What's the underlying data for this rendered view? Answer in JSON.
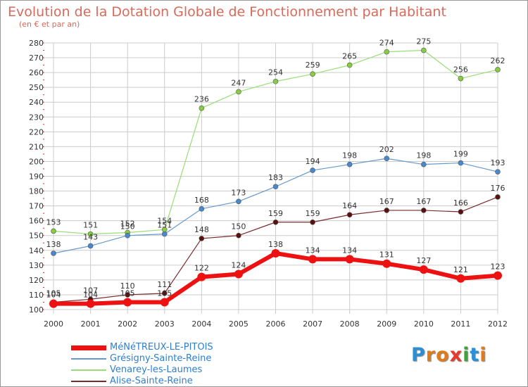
{
  "title": "Evolution de la Dotation Globale de Fonctionnement par Habitant",
  "subtitle": "(en € et par an)",
  "colors": {
    "title": "#d96a5a",
    "grid": "#cccccc",
    "axis_text": "#333333",
    "legend_text": "#2d7fd3",
    "tick_marks": "#cc3333"
  },
  "logo": {
    "text": "Proxiti",
    "letters": [
      {
        "ch": "P",
        "color": "#2b8fd6"
      },
      {
        "ch": "r",
        "color": "#e07b1a"
      },
      {
        "ch": "o",
        "color": "#e07b1a"
      },
      {
        "ch": "x",
        "color": "#e53a2f"
      },
      {
        "ch": "i",
        "color": "#3aa63a"
      },
      {
        "ch": "t",
        "color": "#2b8fd6"
      },
      {
        "ch": "i",
        "color": "#e07b1a"
      }
    ]
  },
  "chart_data": {
    "type": "line",
    "title": "Evolution de la Dotation Globale de Fonctionnement par Habitant",
    "subtitle": "(en € et par an)",
    "x": [
      "2000",
      "2001",
      "2002",
      "2003",
      "2004",
      "2005",
      "2006",
      "2007",
      "2008",
      "2009",
      "2010",
      "2011",
      "2012"
    ],
    "yticks": [
      100,
      110,
      120,
      130,
      140,
      150,
      160,
      170,
      180,
      190,
      200,
      210,
      220,
      230,
      240,
      250,
      260,
      270,
      280
    ],
    "ylim": [
      100,
      280
    ],
    "grid": true,
    "legend_position": "bottom-left",
    "series": [
      {
        "name": "Alise-Sainte-Reine",
        "color": "#7a2a2a",
        "marker": "#5a1010",
        "width": 1.2,
        "radius": 3.5,
        "values": [
          105,
          107,
          110,
          111,
          148,
          150,
          159,
          159,
          164,
          167,
          167,
          166,
          176
        ]
      },
      {
        "name": "Venarey-les-Laumes",
        "color": "#99dd77",
        "marker": "#88cc44",
        "width": 1.2,
        "radius": 3.5,
        "values": [
          153,
          151,
          152,
          154,
          236,
          247,
          254,
          259,
          265,
          274,
          275,
          256,
          262
        ]
      },
      {
        "name": "Grésigny-Sainte-Reine",
        "color": "#6699cc",
        "marker": "#4a88cc",
        "width": 1.2,
        "radius": 3.5,
        "values": [
          138,
          143,
          150,
          151,
          168,
          173,
          183,
          194,
          198,
          202,
          198,
          199,
          193
        ]
      },
      {
        "name": "MéNéTREUX-LE-PITOIS",
        "color": "#ee1111",
        "marker": "#ee1111",
        "width": 6,
        "radius": 6,
        "values": [
          104,
          104,
          105,
          105,
          122,
          124,
          138,
          134,
          134,
          131,
          127,
          121,
          123
        ]
      }
    ],
    "legend_order": [
      "MéNéTREUX-LE-PITOIS",
      "Grésigny-Sainte-Reine",
      "Venarey-les-Laumes",
      "Alise-Sainte-Reine"
    ]
  }
}
